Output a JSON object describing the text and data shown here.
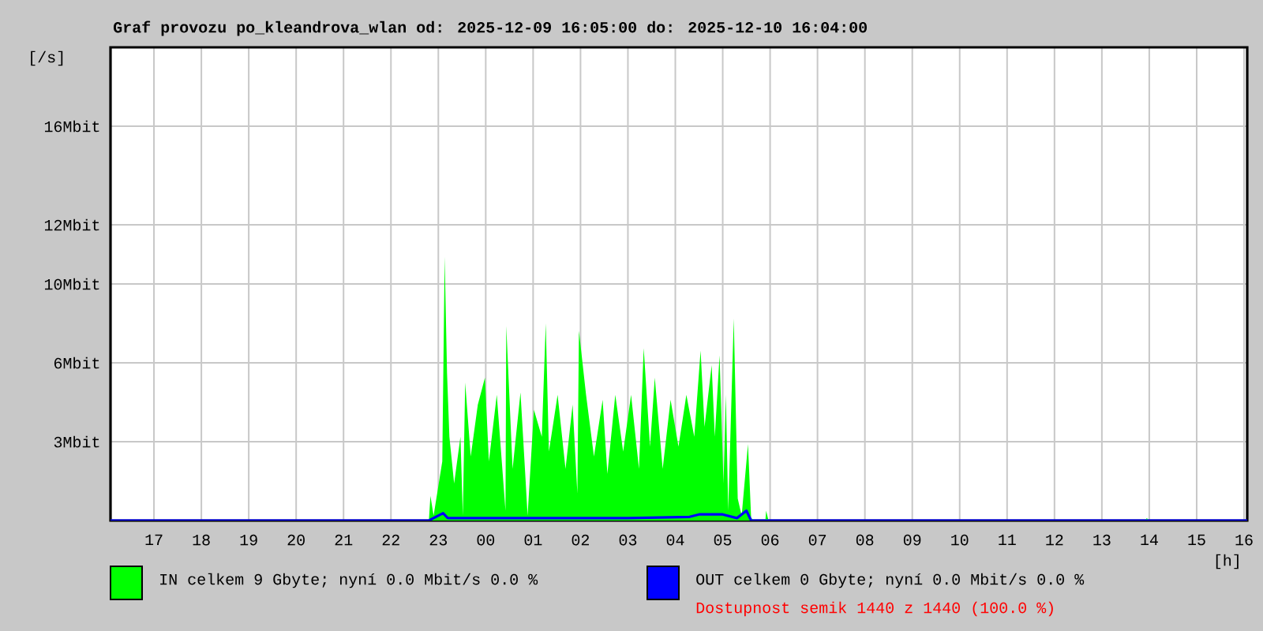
{
  "chart_data": {
    "type": "area",
    "title": "Graf provozu po_kleandrova_wlan od: 2025-12-09 16:05:00 do: 2025-12-10 16:04:00",
    "xlabel": "[h]",
    "ylabel": "[/s]",
    "xlim": [
      "2025-12-09T16:05",
      "2025-12-10T16:04"
    ],
    "ylim": [
      0,
      19.2
    ],
    "xticks": [
      {
        "value": "2025-12-09T17:00",
        "label": "17"
      },
      {
        "value": "2025-12-09T18:00",
        "label": "18"
      },
      {
        "value": "2025-12-09T19:00",
        "label": "19"
      },
      {
        "value": "2025-12-09T20:00",
        "label": "20"
      },
      {
        "value": "2025-12-09T21:00",
        "label": "21"
      },
      {
        "value": "2025-12-09T22:00",
        "label": "22"
      },
      {
        "value": "2025-12-09T23:00",
        "label": "23"
      },
      {
        "value": "2025-12-10T00:00",
        "label": "00"
      },
      {
        "value": "2025-12-10T01:00",
        "label": "01"
      },
      {
        "value": "2025-12-10T02:00",
        "label": "02"
      },
      {
        "value": "2025-12-10T03:00",
        "label": "03"
      },
      {
        "value": "2025-12-10T04:00",
        "label": "04"
      },
      {
        "value": "2025-12-10T05:00",
        "label": "05"
      },
      {
        "value": "2025-12-10T06:00",
        "label": "06"
      },
      {
        "value": "2025-12-10T07:00",
        "label": "07"
      },
      {
        "value": "2025-12-10T08:00",
        "label": "08"
      },
      {
        "value": "2025-12-10T09:00",
        "label": "09"
      },
      {
        "value": "2025-12-10T10:00",
        "label": "10"
      },
      {
        "value": "2025-12-10T11:00",
        "label": "11"
      },
      {
        "value": "2025-12-10T12:00",
        "label": "12"
      },
      {
        "value": "2025-12-10T13:00",
        "label": "13"
      },
      {
        "value": "2025-12-10T14:00",
        "label": "14"
      },
      {
        "value": "2025-12-10T15:00",
        "label": "15"
      },
      {
        "value": "2025-12-10T16:00",
        "label": "16"
      }
    ],
    "yticks": [
      {
        "value": 3.2,
        "label": "3Mbit"
      },
      {
        "value": 6.4,
        "label": "6Mbit"
      },
      {
        "value": 9.6,
        "label": "10Mbit"
      },
      {
        "value": 12,
        "label": "12Mbit"
      },
      {
        "value": 16,
        "label": "16Mbit"
      }
    ],
    "grid": true,
    "legend": "bottom",
    "series": [
      {
        "name": "IN celkem 9 Gbyte; nyní   0.0 Mbit/s 0.0 %",
        "color": "#00ff00",
        "x": [
          "2025-12-09T16:05",
          "2025-12-09T22:48",
          "2025-12-09T22:50",
          "2025-12-09T22:54",
          "2025-12-09T23:05",
          "2025-12-09T23:08",
          "2025-12-09T23:11",
          "2025-12-09T23:14",
          "2025-12-09T23:20",
          "2025-12-09T23:28",
          "2025-12-09T23:31",
          "2025-12-09T23:34",
          "2025-12-09T23:41",
          "2025-12-09T23:50",
          "2025-12-09T23:59",
          "2025-12-10T00:04",
          "2025-12-10T00:14",
          "2025-12-10T00:25",
          "2025-12-10T00:26",
          "2025-12-10T00:34",
          "2025-12-10T00:44",
          "2025-12-10T00:50",
          "2025-12-10T00:53",
          "2025-12-10T01:01",
          "2025-12-10T01:11",
          "2025-12-10T01:16",
          "2025-12-10T01:20",
          "2025-12-10T01:31",
          "2025-12-10T01:41",
          "2025-12-10T01:50",
          "2025-12-10T01:56",
          "2025-12-10T01:58",
          "2025-12-10T02:07",
          "2025-12-10T02:17",
          "2025-12-10T02:28",
          "2025-12-10T02:34",
          "2025-12-10T02:44",
          "2025-12-10T02:54",
          "2025-12-10T03:04",
          "2025-12-10T03:14",
          "2025-12-10T03:20",
          "2025-12-10T03:28",
          "2025-12-10T03:34",
          "2025-12-10T03:44",
          "2025-12-10T03:54",
          "2025-12-10T04:04",
          "2025-12-10T04:14",
          "2025-12-10T04:24",
          "2025-12-10T04:32",
          "2025-12-10T04:37",
          "2025-12-10T04:46",
          "2025-12-10T04:50",
          "2025-12-10T04:56",
          "2025-12-10T05:01",
          "2025-12-10T05:04",
          "2025-12-10T05:07",
          "2025-12-10T05:14",
          "2025-12-10T05:19",
          "2025-12-10T05:24",
          "2025-12-10T05:32",
          "2025-12-10T05:36",
          "2025-12-10T05:41",
          "2025-12-10T05:54",
          "2025-12-10T05:55",
          "2025-12-10T05:58",
          "2025-12-10T13:54",
          "2025-12-10T13:57",
          "2025-12-10T14:00",
          "2025-12-10T16:04"
        ],
        "values": [
          0,
          0,
          1.0,
          0.2,
          2.4,
          10.7,
          6.0,
          3.4,
          1.5,
          3.4,
          0.2,
          5.6,
          2.6,
          4.7,
          5.8,
          2.4,
          5.1,
          0.4,
          7.9,
          2.1,
          5.2,
          1.9,
          0.2,
          4.5,
          3.4,
          8.0,
          2.8,
          5.1,
          2.1,
          4.7,
          1.1,
          7.7,
          5.1,
          2.6,
          4.9,
          1.9,
          5.1,
          2.8,
          5.1,
          2.1,
          7.0,
          3.0,
          5.8,
          2.1,
          4.9,
          3.0,
          5.1,
          3.4,
          6.9,
          3.8,
          6.3,
          3.4,
          6.7,
          1.5,
          5.1,
          0.4,
          8.2,
          0.9,
          0.2,
          3.1,
          0.1,
          0,
          0,
          0.4,
          0,
          0,
          0.1,
          0,
          0
        ]
      },
      {
        "name": "OUT celkem 0 Gbyte; nyní   0.0 Mbit/s 0.0 %",
        "color": "#0000ff",
        "type": "line",
        "x": [
          "2025-12-09T16:05",
          "2025-12-09T22:48",
          "2025-12-09T23:06",
          "2025-12-09T23:12",
          "2025-12-10T01:00",
          "2025-12-10T03:00",
          "2025-12-10T04:18",
          "2025-12-10T04:30",
          "2025-12-10T05:00",
          "2025-12-10T05:18",
          "2025-12-10T05:30",
          "2025-12-10T05:36",
          "2025-12-10T16:04"
        ],
        "values": [
          0,
          0,
          0.3,
          0.1,
          0.1,
          0.1,
          0.15,
          0.25,
          0.25,
          0.1,
          0.4,
          0,
          0
        ]
      }
    ],
    "annotations": [
      "Dostupnost semik 1440 z 1440 (100.0 %)"
    ]
  }
}
